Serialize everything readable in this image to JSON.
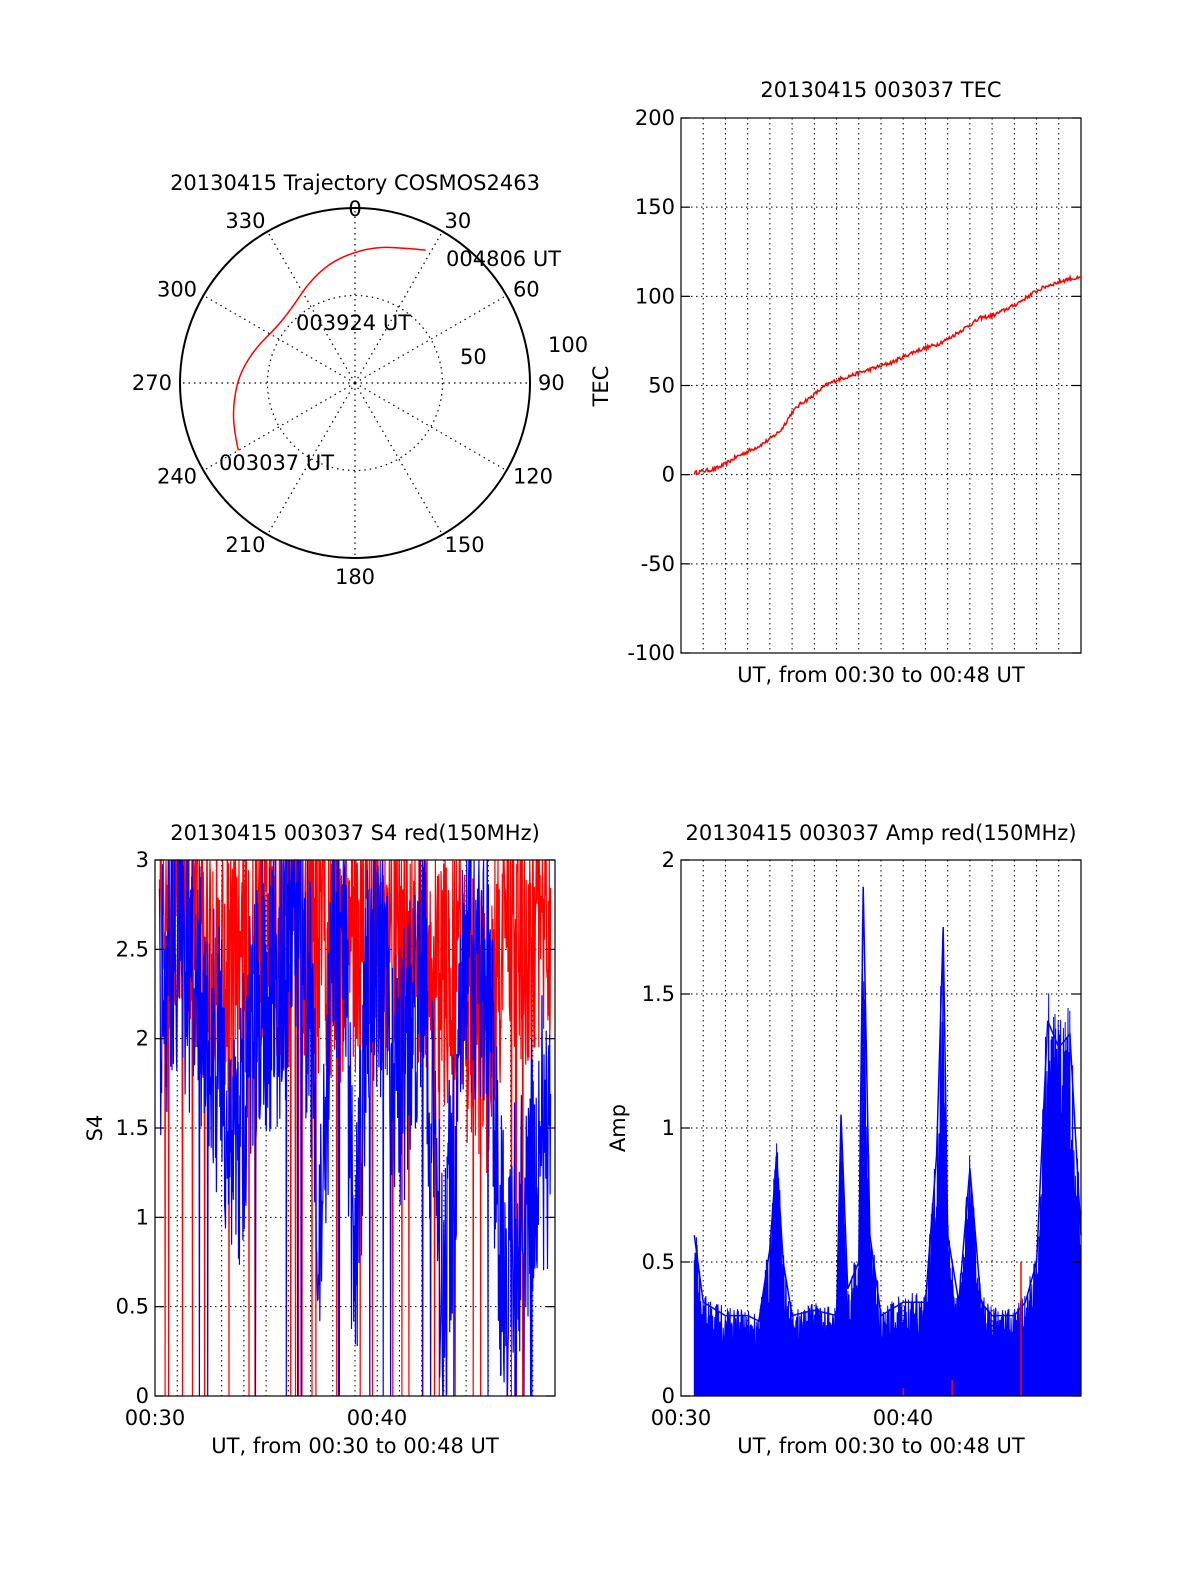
{
  "colors": {
    "red": "#ff0000",
    "blue": "#0000ff",
    "axis": "#000000",
    "grid": "#000000"
  },
  "chart_data": [
    {
      "type": "polar",
      "title": "20130415 Trajectory COSMOS2463",
      "angle_labels": [
        "0",
        "30",
        "60",
        "90",
        "120",
        "150",
        "180",
        "210",
        "240",
        "270",
        "300",
        "330"
      ],
      "radius_labels": [
        "50",
        "100"
      ],
      "rings": [
        50,
        100
      ],
      "zenith_distance_max": 100,
      "grid": true,
      "series": [
        {
          "color": "red",
          "points": [
            [
              240,
              77
            ],
            [
              250,
              74
            ],
            [
              262,
              70
            ],
            [
              275,
              66
            ],
            [
              290,
              60
            ],
            [
              305,
              55
            ],
            [
              320,
              56
            ],
            [
              335,
              63
            ],
            [
              348,
              70
            ],
            [
              360,
              75
            ],
            [
              370,
              79
            ],
            [
              380,
              82
            ],
            [
              388,
              86
            ]
          ]
        }
      ],
      "annotations": [
        {
          "text": "004806 UT",
          "azimuth": 50,
          "distance": 82
        },
        {
          "text": "003924 UT",
          "azimuth": 340,
          "distance": 36
        },
        {
          "text": "003037 UT",
          "azimuth": 238,
          "distance": 53
        }
      ]
    },
    {
      "type": "line",
      "title": "20130415 003037 TEC",
      "xlabel": "UT, from 00:30 to 00:48 UT",
      "ylabel": "TEC",
      "ylim": [
        -100,
        200
      ],
      "yticks": [
        "-100",
        "-50",
        "0",
        "50",
        "100",
        "150",
        "200"
      ],
      "xlim_minutes": [
        0,
        18
      ],
      "grid": true,
      "series": [
        {
          "color": "red",
          "x": [
            0.6,
            1.0,
            1.5,
            2.0,
            2.5,
            3.0,
            3.5,
            4.0,
            4.5,
            5.0,
            5.4,
            5.8,
            6.5,
            7.0,
            7.5,
            8.0,
            8.5,
            9.0,
            9.5,
            10.0,
            10.5,
            11.0,
            11.5,
            12.0,
            12.5,
            13.0,
            13.5,
            14.0,
            14.5,
            15.0,
            15.5,
            16.0,
            16.5,
            17.0,
            17.5,
            18.0
          ],
          "y": [
            1,
            2,
            3,
            6,
            10,
            13,
            16,
            20,
            25,
            35,
            40,
            43,
            50,
            53,
            55,
            57,
            59,
            61,
            63,
            66,
            69,
            71,
            73,
            76,
            80,
            84,
            88,
            89,
            92,
            95,
            99,
            103,
            106,
            108,
            110,
            110
          ]
        }
      ]
    },
    {
      "type": "line",
      "title": "20130415 003037 S4 red(150MHz)",
      "xlabel": "UT, from 00:30 to 00:48 UT",
      "ylabel": "S4",
      "ylim": [
        0,
        3
      ],
      "yticks": [
        "0",
        "0.5",
        "1",
        "1.5",
        "2",
        "2.5",
        "3"
      ],
      "xticks": [
        "00:30",
        "00:40"
      ],
      "xlim_minutes": [
        0,
        18
      ],
      "grid": true,
      "series": [
        {
          "color": "red",
          "x": [
            0.2,
            1.0,
            2.0,
            3.0,
            4.0,
            5.0,
            6.0,
            7.0,
            8.0,
            9.0,
            10.0,
            11.0,
            12.0,
            13.0,
            14.0,
            15.0,
            15.5,
            16.0,
            16.5,
            17.0,
            17.5
          ],
          "y": [
            2.9,
            2.7,
            2.6,
            2.4,
            2.5,
            2.7,
            2.6,
            2.6,
            2.5,
            2.6,
            2.7,
            2.5,
            2.6,
            2.4,
            2.2,
            2.0,
            2.5,
            2.8,
            2.5,
            2.6,
            2.7
          ]
        },
        {
          "color": "blue",
          "x": [
            0.2,
            1.0,
            2.0,
            3.0,
            3.7,
            4.5,
            5.5,
            6.5,
            7.0,
            7.5,
            8.0,
            8.5,
            9.0,
            9.5,
            10.0,
            11.0,
            12.0,
            13.0,
            14.0,
            15.0,
            15.5,
            16.0,
            16.5,
            17.0,
            17.5
          ],
          "y": [
            2.2,
            2.6,
            2.2,
            1.8,
            1.3,
            2.2,
            2.3,
            2.5,
            2.2,
            0.8,
            2.4,
            2.6,
            0.5,
            2.2,
            2.5,
            1.7,
            2.5,
            0.5,
            2.5,
            2.3,
            0.9,
            0.8,
            1.0,
            1.3,
            1.5
          ]
        }
      ]
    },
    {
      "type": "line",
      "title": "20130415 003037 Amp red(150MHz)",
      "xlabel": "UT, from 00:30 to 00:48 UT",
      "ylabel": "Amp",
      "ylim": [
        0,
        2
      ],
      "yticks": [
        "0",
        "0.5",
        "1",
        "1.5",
        "2"
      ],
      "xticks": [
        "00:30",
        "00:40"
      ],
      "xlim_minutes": [
        0,
        18
      ],
      "grid": true,
      "series": [
        {
          "color": "blue",
          "x": [
            0.6,
            1.0,
            2.0,
            3.0,
            3.5,
            4.0,
            4.3,
            4.6,
            5.0,
            6.0,
            7.0,
            7.2,
            7.5,
            8.0,
            8.2,
            8.5,
            9.0,
            10.0,
            11.0,
            11.5,
            11.8,
            12.0,
            12.5,
            13.0,
            13.5,
            14.0,
            15.0,
            15.5,
            16.0,
            16.5,
            17.0,
            17.5,
            18.0
          ],
          "y": [
            0.6,
            0.35,
            0.3,
            0.3,
            0.28,
            0.55,
            0.9,
            0.5,
            0.3,
            0.32,
            0.3,
            1.05,
            0.4,
            0.5,
            1.9,
            0.6,
            0.3,
            0.35,
            0.35,
            0.9,
            1.75,
            0.6,
            0.35,
            0.85,
            0.35,
            0.3,
            0.3,
            0.35,
            0.5,
            1.4,
            1.3,
            1.35,
            0.6
          ]
        },
        {
          "color": "red",
          "x": [
            10.0,
            12.2,
            15.3
          ],
          "y": [
            0.03,
            0.06,
            0.5
          ]
        }
      ]
    }
  ]
}
